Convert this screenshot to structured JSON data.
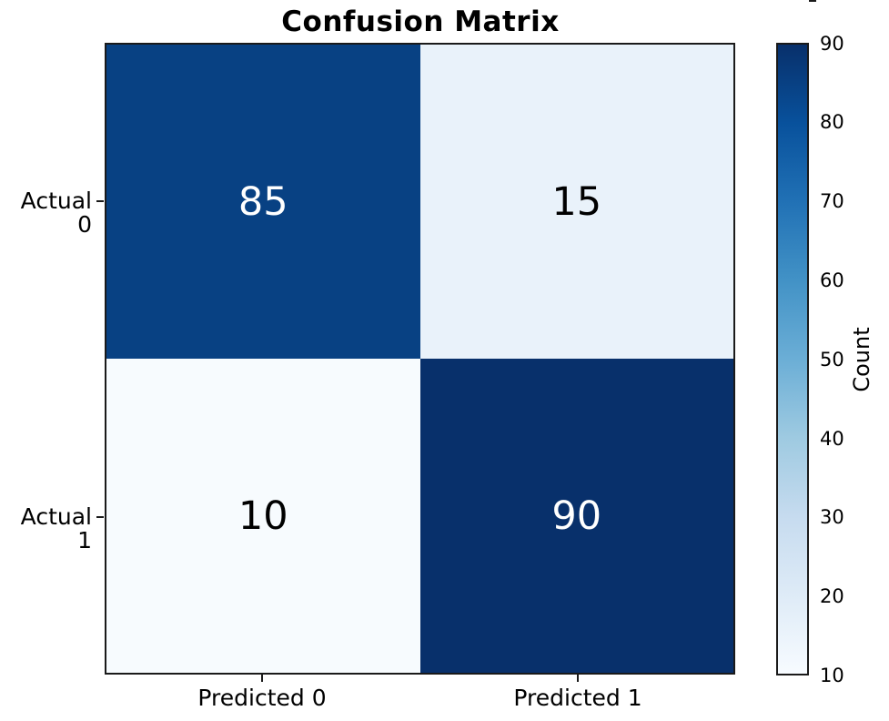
{
  "chart_data": {
    "type": "heatmap",
    "title": "Confusion Matrix",
    "x_tick_labels": [
      "Predicted 0",
      "Predicted 1"
    ],
    "y_tick_labels": [
      "Actual 0",
      "Actual 1"
    ],
    "matrix": [
      [
        85,
        15
      ],
      [
        10,
        90
      ]
    ],
    "colormap": "Blues",
    "vmin": 10,
    "vmax": 90,
    "grid": false,
    "colorbar": {
      "label": "Count",
      "position": "right",
      "ticks": [
        90,
        80,
        70,
        60,
        50,
        40,
        30,
        20,
        10
      ],
      "top_color": "#08306b",
      "bottom_color": "#f7fbff"
    },
    "cell_colors": [
      [
        "#084183",
        "#e9f2fa"
      ],
      [
        "#f7fbfe",
        "#08306b"
      ]
    ],
    "cell_text_colors": [
      [
        "#ffffff",
        "#000000"
      ],
      [
        "#000000",
        "#ffffff"
      ]
    ],
    "spine_color": "#1a1a1a"
  }
}
